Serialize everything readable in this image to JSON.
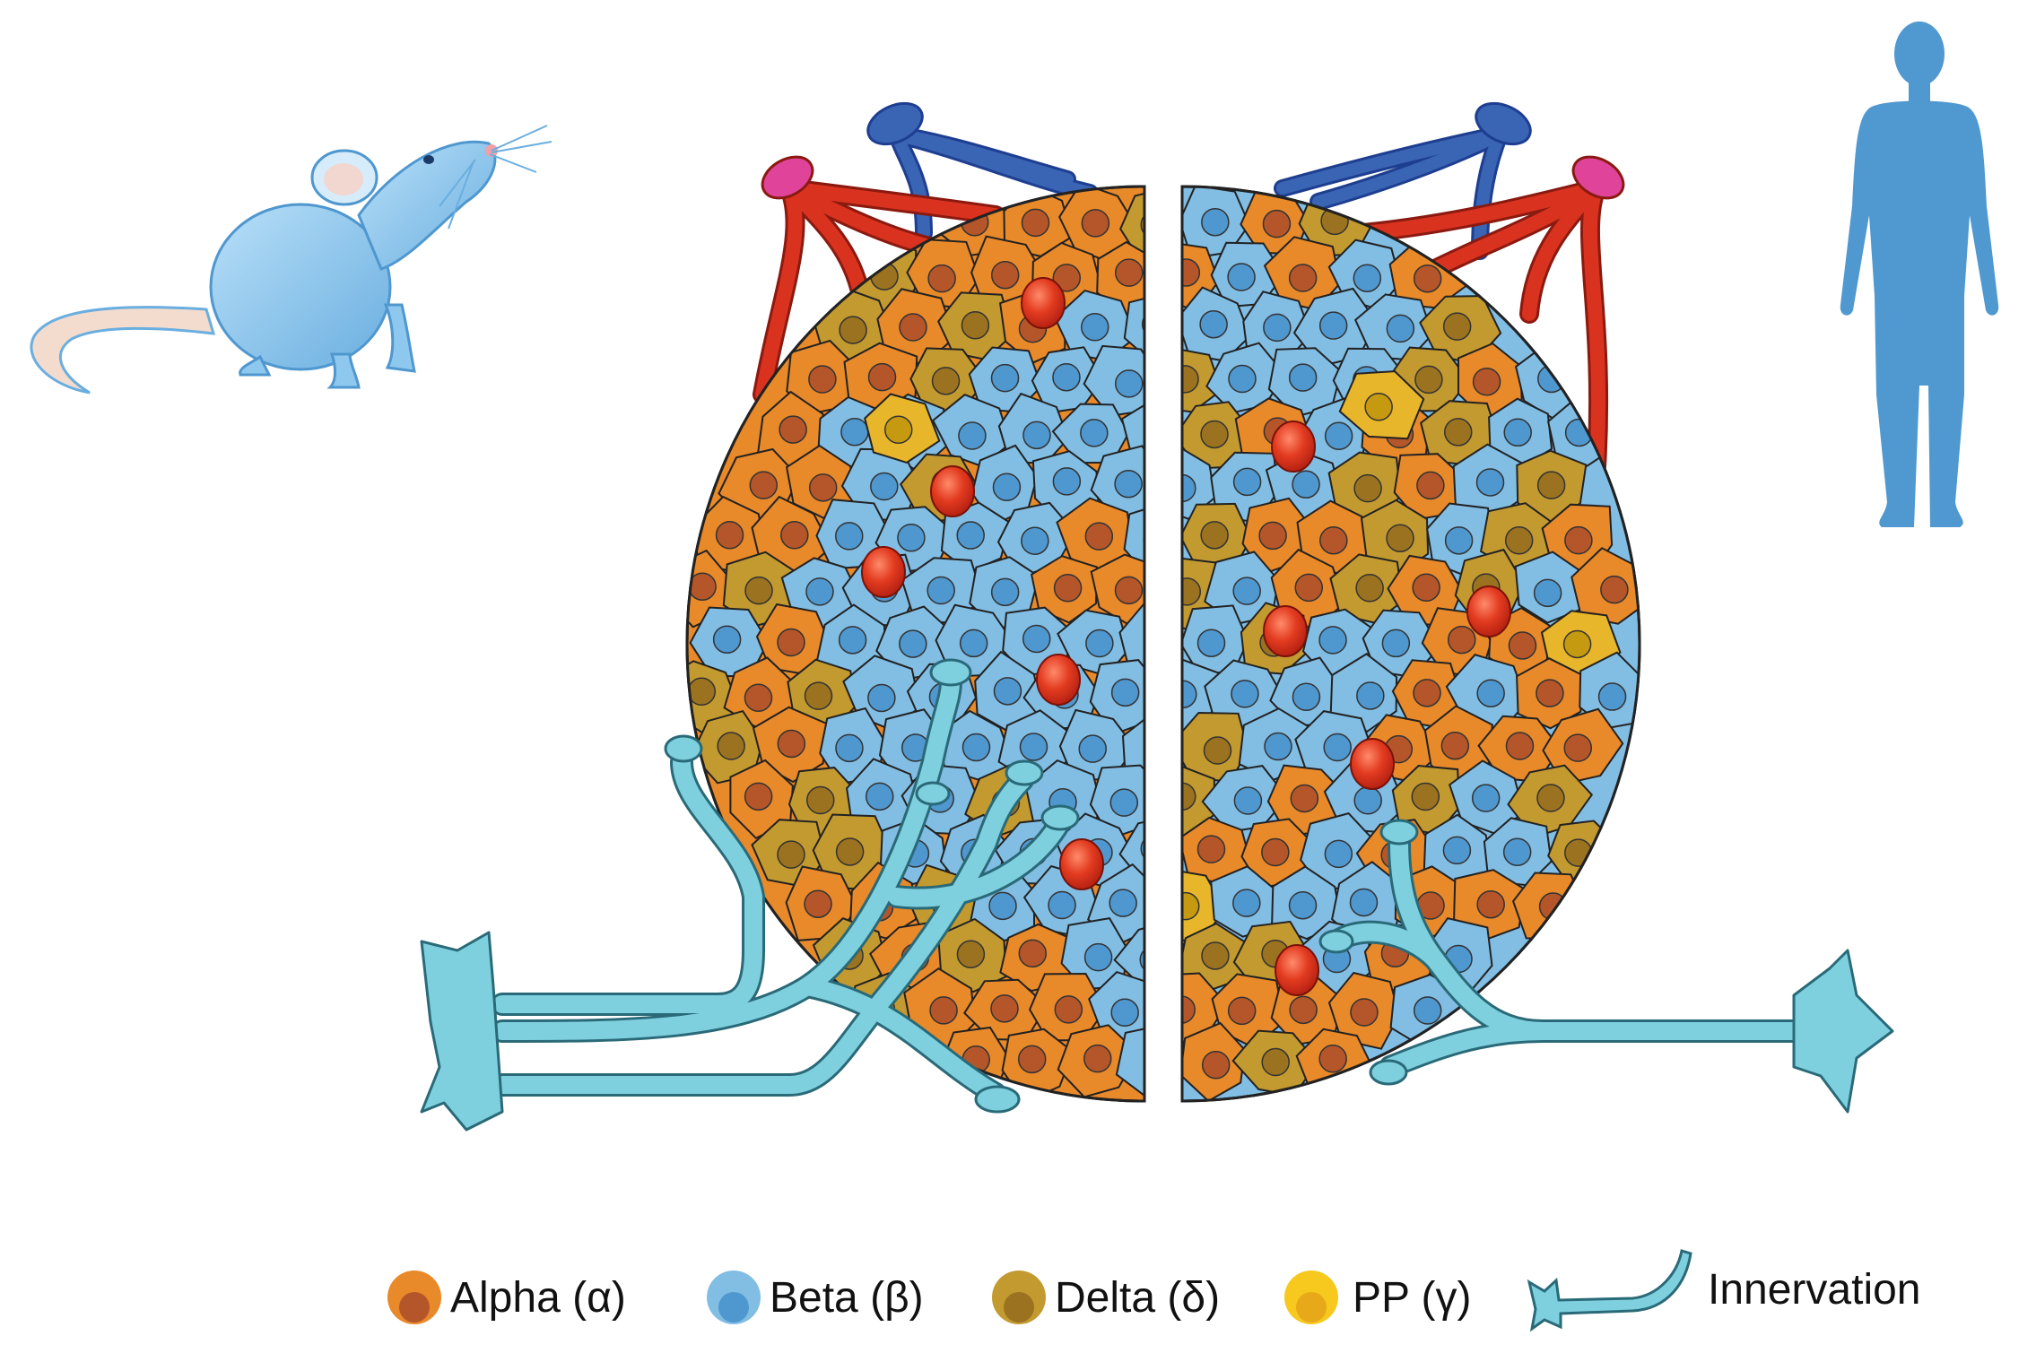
{
  "colors": {
    "alpha": "#e8892a",
    "alpha_nucleus": "#b4562a",
    "beta": "#82bde3",
    "beta_nucleus": "#4f97cf",
    "delta": "#c39a30",
    "delta_nucleus": "#9a7220",
    "pp": "#e7b62a",
    "pp_nucleus": "#c69a10",
    "innervation": "#7fd0df",
    "artery": "#d9321f",
    "vein": "#3a64b4",
    "blood_cell": "#e23b20",
    "mouse": "#8fc8ee",
    "human": "#4f98d0"
  },
  "icons": {
    "mouse": "mouse-icon",
    "human": "human-icon",
    "innervation": "neuron-icon"
  },
  "legend": {
    "alpha": "Alpha (α)",
    "beta": "Beta (β)",
    "delta": "Delta (δ)",
    "pp": "PP (γ)",
    "innervation": "Innervation"
  }
}
